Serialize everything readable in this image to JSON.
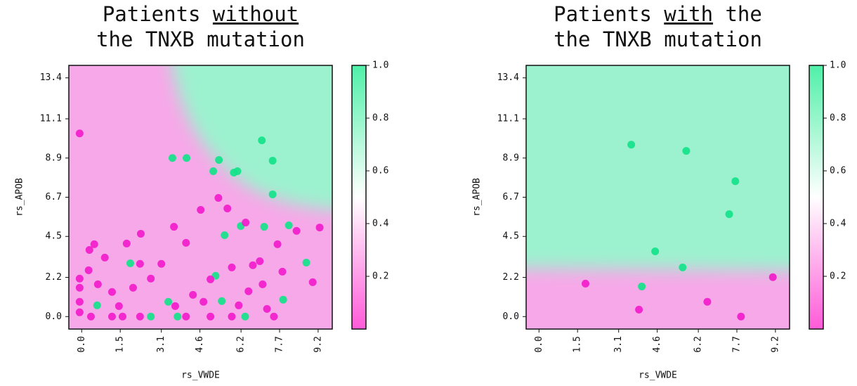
{
  "chart_data": [
    {
      "type": "scatter",
      "title_lines": [
        [
          "Patients",
          "without"
        ],
        [
          "the TNXB mutation"
        ]
      ],
      "underlined": [
        0,
        1
      ],
      "xlabel": "rs_VWDE",
      "ylabel": "rs_APOB",
      "xlim": [
        -0.5,
        9.75
      ],
      "ylim": [
        -0.7,
        14.1
      ],
      "xticks": [
        {
          "value": 0,
          "label": "0.0"
        },
        1.5,
        3.1,
        4.6,
        6.2,
        7.7,
        9.2
      ],
      "yticks": [
        {
          "value": 0,
          "label": "0.0"
        },
        2.2,
        4.5,
        6.7,
        8.9,
        11.1,
        13.4
      ],
      "colorbar": {
        "lim": [
          0,
          1
        ],
        "ticks": [
          0.2,
          0.4,
          0.6,
          0.8,
          {
            "value": 1,
            "label": "1.0"
          }
        ],
        "colors": [
          "#ff5ad8",
          "#ffffff",
          "#4ff0a8"
        ]
      },
      "background_colors": [
        "#f7a8e8",
        "#9cf2cf"
      ],
      "series": [
        {
          "color": "#14e38a",
          "x": [
            3.53,
            4.08,
            5.34,
            5.12,
            5.92,
            6.06,
            7.01,
            7.43,
            7.43,
            8.06,
            7.1,
            6.19,
            5.56,
            8.74,
            5.21,
            5.45,
            7.84,
            6.36,
            3.73,
            2.69,
            0.6,
            3.37,
            1.89
          ],
          "values": [
            8.9,
            8.9,
            8.79,
            8.16,
            8.08,
            8.16,
            9.89,
            8.75,
            6.86,
            5.12,
            5.04,
            5.08,
            4.57,
            3.03,
            2.29,
            0.87,
            0.95,
            0,
            0,
            0,
            0.63,
            0.83,
            2.99
          ]
        },
        {
          "color": "#f21ccb",
          "x": [
            -0.08,
            9.26,
            8.36,
            7.62,
            8.99,
            6.38,
            5.67,
            5.32,
            4.63,
            3.59,
            2.3,
            1.75,
            0.49,
            0.3,
            0.9,
            0.27,
            -0.08,
            -0.08,
            -0.08,
            -0.08,
            0.36,
            1.18,
            1.59,
            2.27,
            4.06,
            5.01,
            5.84,
            7.48,
            3.1,
            2.27,
            4.06,
            5.84,
            6.66,
            6.93,
            7.81,
            7.04,
            6.49,
            7.21,
            5.01,
            4.33,
            2.69,
            2.0,
            1.18,
            0.63,
            1.45,
            3.64,
            4.74,
            6.11
          ],
          "values": [
            10.28,
            5.0,
            4.81,
            4.06,
            1.93,
            5.28,
            6.07,
            6.66,
            5.99,
            5.04,
            4.65,
            4.1,
            4.06,
            3.74,
            3.31,
            2.6,
            2.13,
            1.62,
            0.83,
            0.24,
            0,
            0,
            0,
            0,
            0,
            0,
            0,
            0,
            2.96,
            2.96,
            4.14,
            2.76,
            2.88,
            3.11,
            2.52,
            1.81,
            1.42,
            0.43,
            2.09,
            1.22,
            2.13,
            1.62,
            1.38,
            1.81,
            0.59,
            0.59,
            0.83,
            0.63
          ]
        }
      ]
    },
    {
      "type": "scatter",
      "title_lines": [
        [
          "Patients",
          "with",
          "the"
        ],
        [
          "the TNXB mutation"
        ]
      ],
      "underlined": [
        0,
        1
      ],
      "xlabel": "rs_VWDE",
      "ylabel": "rs_APOB",
      "xlim": [
        -0.5,
        9.75
      ],
      "ylim": [
        -0.7,
        14.1
      ],
      "xticks": [
        {
          "value": 0,
          "label": "0.0"
        },
        1.5,
        3.1,
        4.6,
        6.2,
        7.7,
        9.2
      ],
      "yticks": [
        {
          "value": 0,
          "label": "0.0"
        },
        2.2,
        4.5,
        6.7,
        8.9,
        11.1,
        13.4
      ],
      "colorbar": {
        "lim": [
          0,
          1
        ],
        "ticks": [
          0.2,
          0.4,
          0.6,
          0.8,
          {
            "value": 1,
            "label": "1.0"
          }
        ],
        "colors": [
          "#ff5ad8",
          "#ffffff",
          "#4ff0a8"
        ]
      },
      "background_colors": [
        "#f7a8e8",
        "#9cf2cf"
      ],
      "series": [
        {
          "color": "#14e38a",
          "x": [
            3.59,
            5.73,
            7.64,
            7.4,
            4.52,
            5.59,
            4.0
          ],
          "values": [
            9.65,
            9.3,
            7.6,
            5.75,
            3.66,
            2.76,
            1.69
          ]
        },
        {
          "color": "#f21ccb",
          "x": [
            1.81,
            9.1,
            6.55,
            3.89,
            7.86
          ],
          "values": [
            1.85,
            2.21,
            0.83,
            0.39,
            0
          ]
        }
      ]
    }
  ]
}
